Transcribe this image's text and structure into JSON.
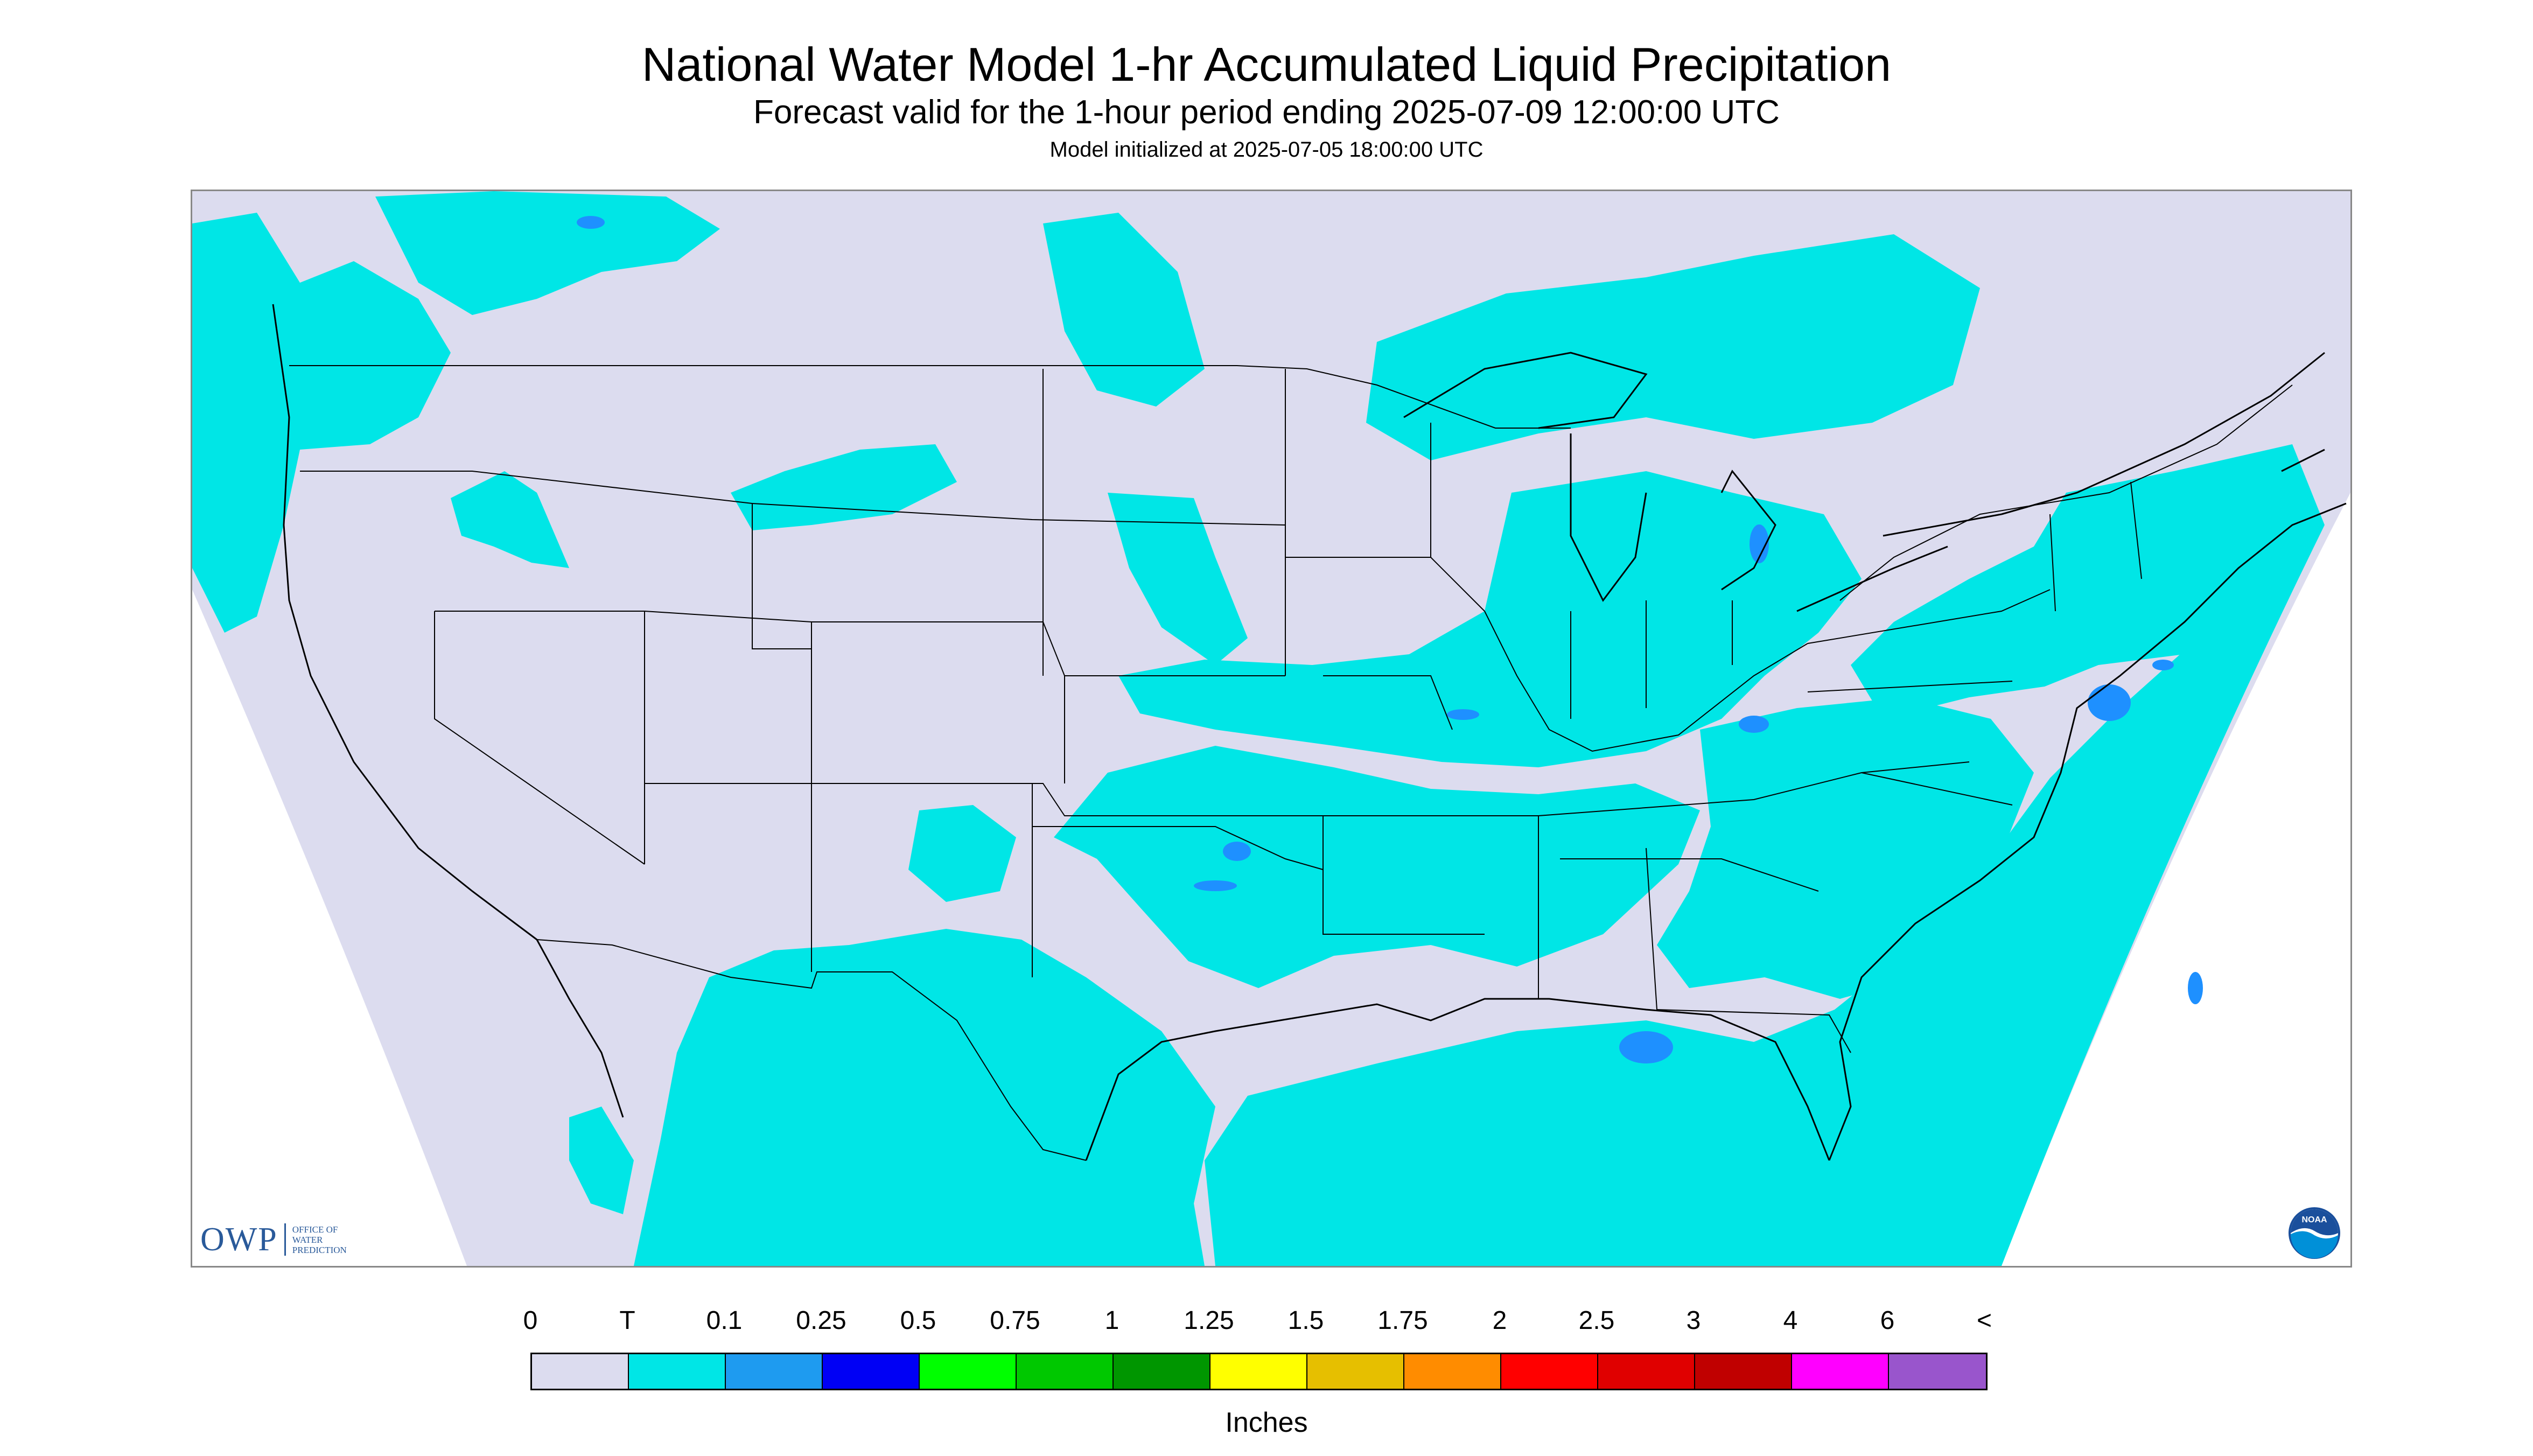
{
  "title": "National Water Model 1-hr Accumulated Liquid Precipitation",
  "subtitle": "Forecast valid for the 1-hour period ending 2025-07-09 12:00:00 UTC",
  "init_line": "Model initialized at 2025-07-05 18:00:00 UTC",
  "map": {
    "background_color": "#dcdcef",
    "outside_color": "#ffffff",
    "trace_color": "#00e6e6",
    "light_color": "#1e90ff",
    "boundary_color": "#000000"
  },
  "logos": {
    "owp_mark": "OWP",
    "owp_line1": "OFFICE OF",
    "owp_line2": "WATER",
    "owp_line3": "PREDICTION",
    "noaa_label": "NOAA"
  },
  "legend": {
    "labels": [
      "0",
      "T",
      "0.1",
      "0.25",
      "0.5",
      "0.75",
      "1",
      "1.25",
      "1.5",
      "1.75",
      "2",
      "2.5",
      "3",
      "4",
      "6",
      "<"
    ],
    "colors": [
      "#dcdcef",
      "#00e6e6",
      "#1e9bf0",
      "#0000f5",
      "#00ff00",
      "#00c800",
      "#009600",
      "#ffff00",
      "#e6bf00",
      "#ff8c00",
      "#ff0000",
      "#e00000",
      "#c00000",
      "#ff00ff",
      "#9955cc"
    ],
    "units": "Inches"
  }
}
